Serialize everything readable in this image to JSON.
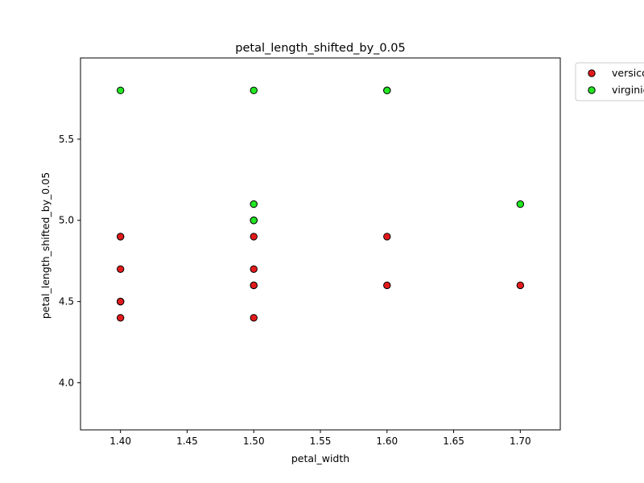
{
  "chart_data": {
    "type": "scatter",
    "title": "petal_length_shifted_by_0.05",
    "xlabel": "petal_width",
    "ylabel": "petal_length_shifted_by_0.05",
    "xlim": [
      1.37,
      1.73
    ],
    "ylim": [
      3.71,
      6.0
    ],
    "x_ticks": [
      1.4,
      1.45,
      1.5,
      1.55,
      1.6,
      1.65,
      1.7
    ],
    "x_tick_labels": [
      "1.40",
      "1.45",
      "1.50",
      "1.55",
      "1.60",
      "1.65",
      "1.70"
    ],
    "y_ticks": [
      4.0,
      4.5,
      5.0,
      5.5
    ],
    "y_tick_labels": [
      "4.0",
      "4.5",
      "5.0",
      "5.5"
    ],
    "grid": false,
    "legend_position": "outside-top-right",
    "series": [
      {
        "name": "versicolor",
        "color": "#e31a1c",
        "points": [
          {
            "x": 1.4,
            "y": 4.9
          },
          {
            "x": 1.4,
            "y": 4.9
          },
          {
            "x": 1.4,
            "y": 4.7
          },
          {
            "x": 1.4,
            "y": 4.5
          },
          {
            "x": 1.4,
            "y": 4.5
          },
          {
            "x": 1.4,
            "y": 4.4
          },
          {
            "x": 1.5,
            "y": 4.9
          },
          {
            "x": 1.5,
            "y": 4.7
          },
          {
            "x": 1.5,
            "y": 4.6
          },
          {
            "x": 1.5,
            "y": 4.6
          },
          {
            "x": 1.5,
            "y": 4.4
          },
          {
            "x": 1.6,
            "y": 4.9
          },
          {
            "x": 1.6,
            "y": 4.6
          },
          {
            "x": 1.7,
            "y": 4.6
          }
        ]
      },
      {
        "name": "virginica",
        "color": "#22e622",
        "points": [
          {
            "x": 1.4,
            "y": 5.8
          },
          {
            "x": 1.5,
            "y": 5.8
          },
          {
            "x": 1.5,
            "y": 5.1
          },
          {
            "x": 1.5,
            "y": 5.0
          },
          {
            "x": 1.5,
            "y": 5.0
          },
          {
            "x": 1.6,
            "y": 5.8
          },
          {
            "x": 1.6,
            "y": 5.8
          },
          {
            "x": 1.7,
            "y": 5.1
          }
        ]
      }
    ]
  }
}
